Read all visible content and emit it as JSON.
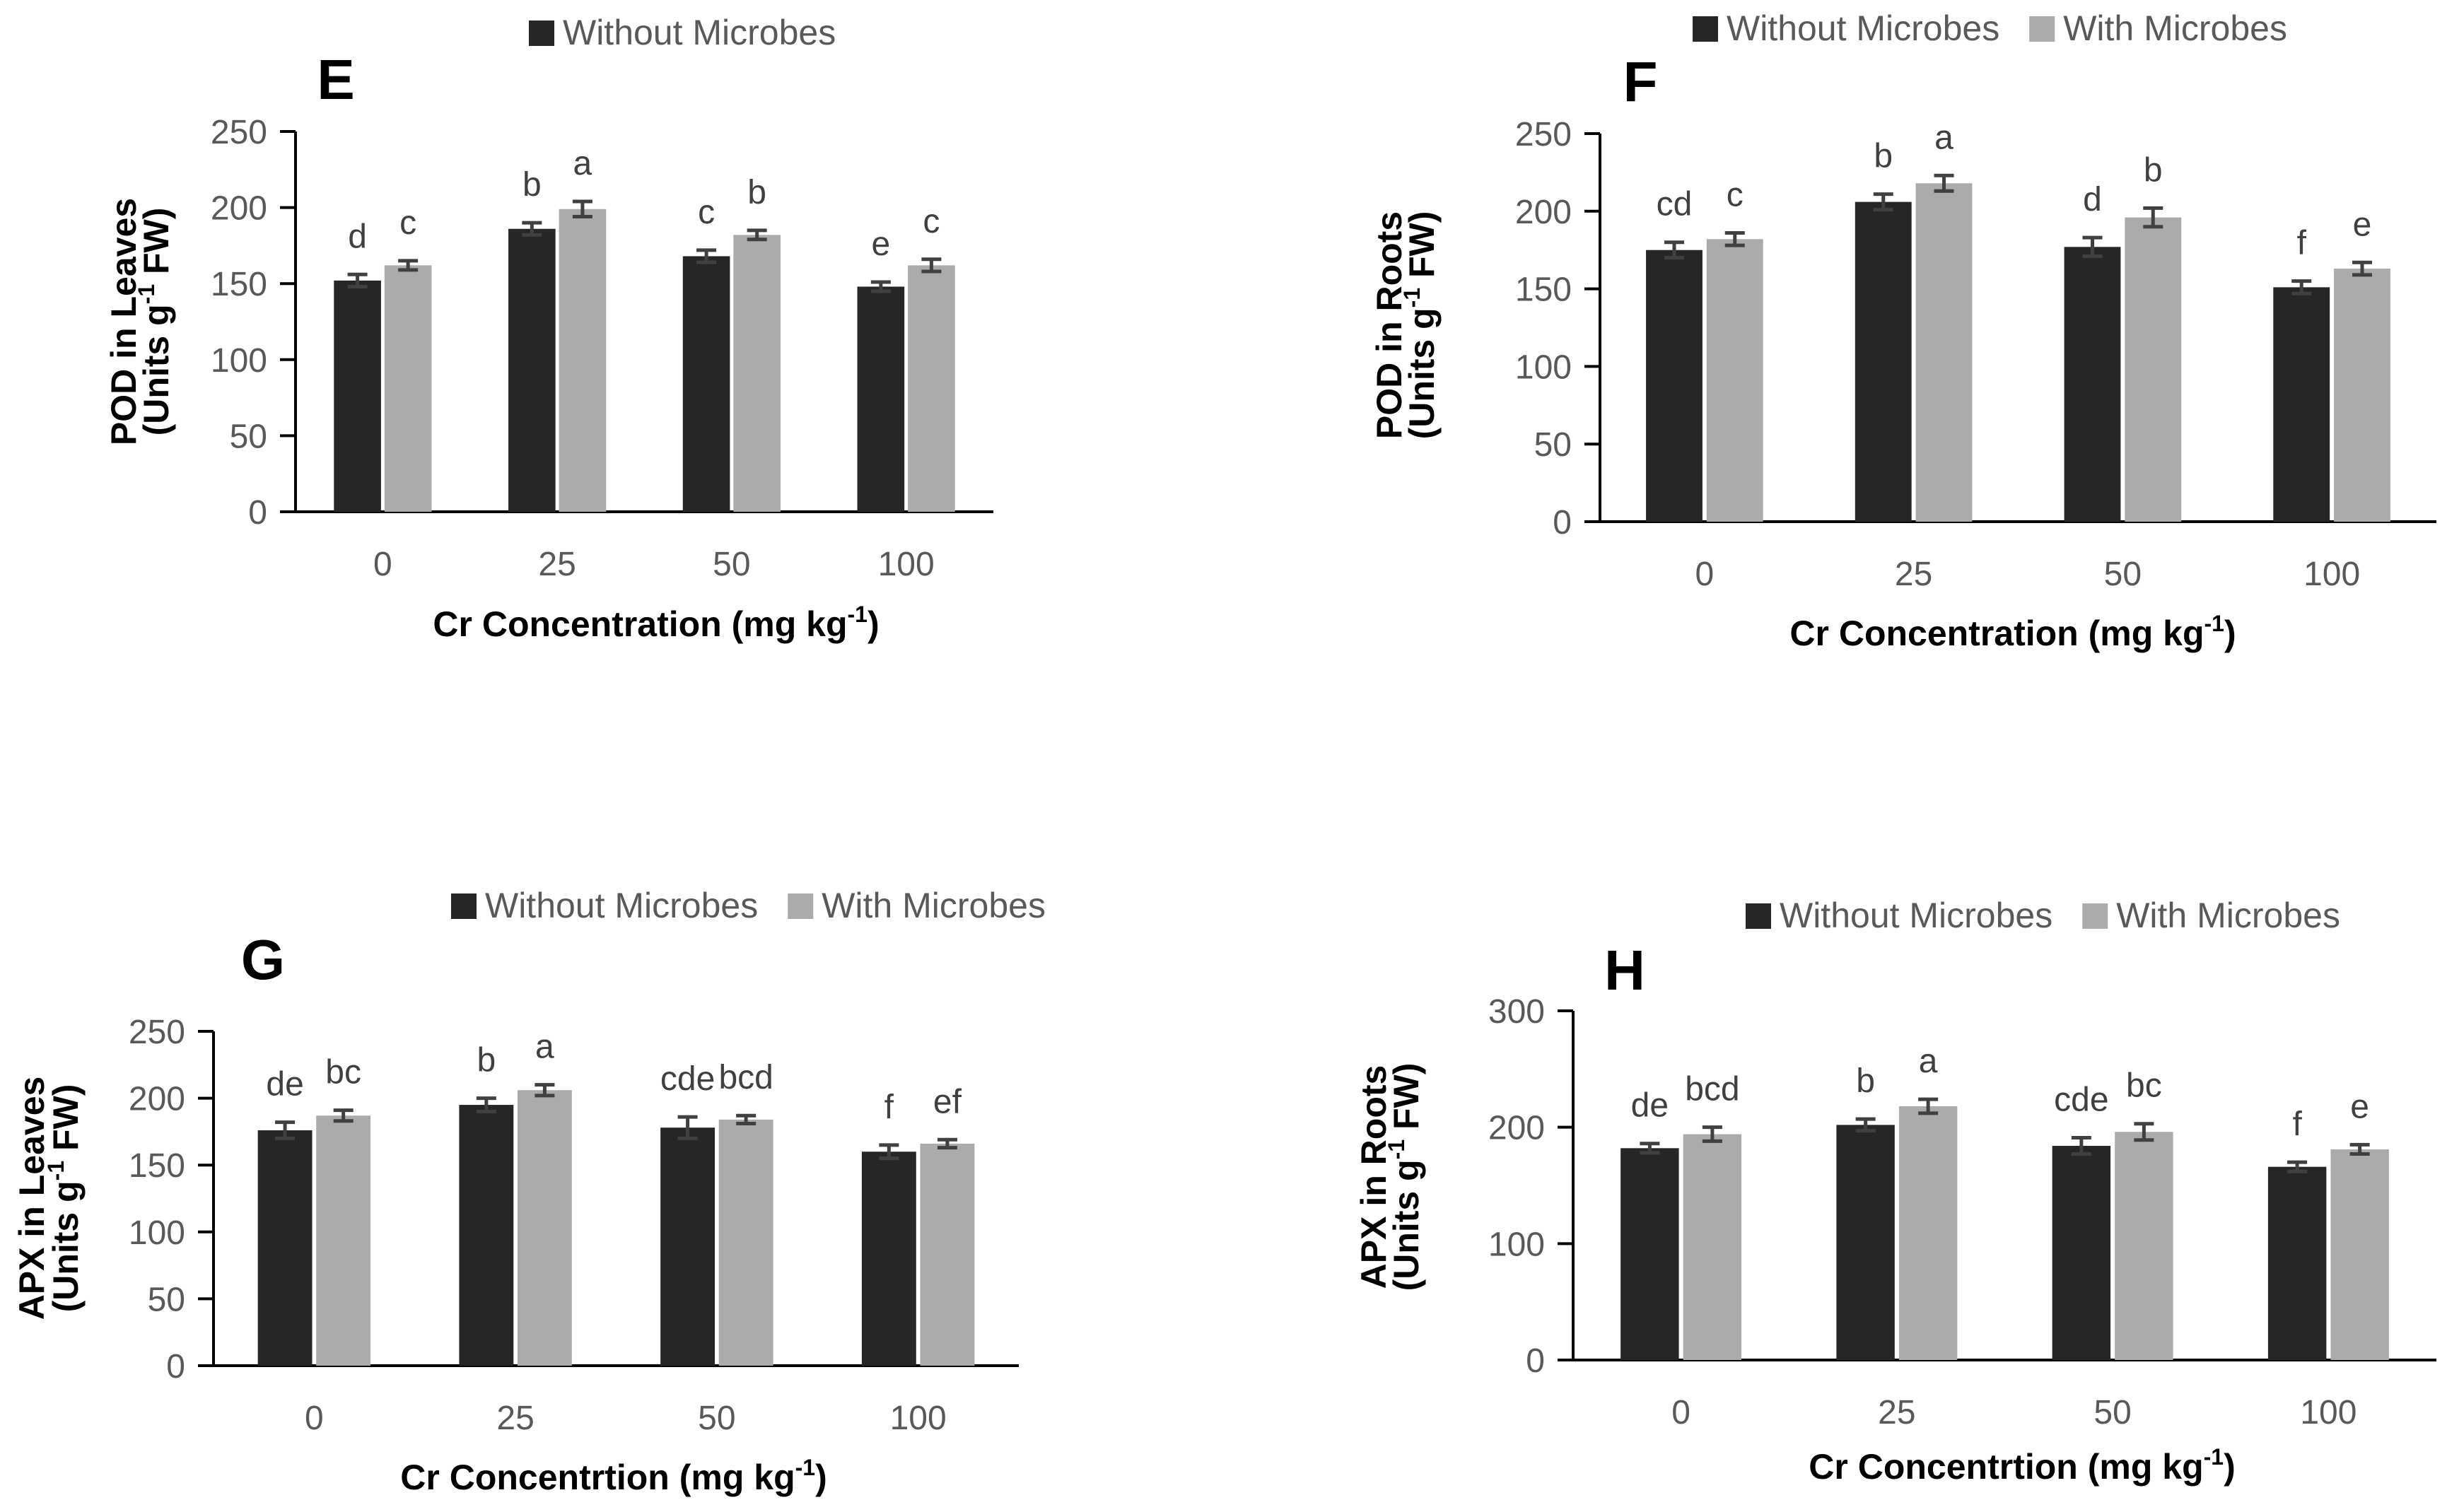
{
  "colors": {
    "without": "#262626",
    "with": "#ababab",
    "axis": "#000000",
    "errorbar": "#404040"
  },
  "chart_data": [
    {
      "type": "bar",
      "panel": "E",
      "legend": [
        "Without Microbes"
      ],
      "categories": [
        "0",
        "25",
        "50",
        "100"
      ],
      "xlabel": "Cr Concentration (mg kg",
      "xlabel_sup": "-1",
      "xlabel_end": ")",
      "ylabel_line1": "POD in Leaves",
      "ylabel_line2_pre": "(Units g",
      "ylabel_sup": "-1",
      "ylabel_line2_post": " FW)",
      "ylim": [
        0,
        250
      ],
      "yticks": [
        "0",
        "50",
        "100",
        "150",
        "200",
        "250"
      ],
      "series": [
        {
          "name": "Without Microbes",
          "values": [
            152,
            186,
            168,
            148
          ],
          "errors": [
            4,
            4,
            4,
            3
          ],
          "letters": [
            "d",
            "b",
            "c",
            "e"
          ]
        },
        {
          "name": "With Microbes",
          "values": [
            162,
            199,
            182,
            162
          ],
          "errors": [
            3,
            5,
            3,
            4
          ],
          "letters": [
            "c",
            "a",
            "b",
            "c"
          ]
        }
      ]
    },
    {
      "type": "bar",
      "panel": "F",
      "legend": [
        "Without Microbes",
        "With Microbes"
      ],
      "categories": [
        "0",
        "25",
        "50",
        "100"
      ],
      "xlabel": "Cr Concentration (mg kg",
      "xlabel_sup": "-1",
      "xlabel_end": ")",
      "ylabel_line1": "POD in Roots",
      "ylabel_line2_pre": "(Units g",
      "ylabel_sup": "-1",
      "ylabel_line2_post": " FW)",
      "ylim": [
        0,
        250
      ],
      "yticks": [
        "0",
        "50",
        "100",
        "150",
        "200",
        "250"
      ],
      "series": [
        {
          "name": "Without Microbes",
          "values": [
            175,
            206,
            177,
            151
          ],
          "errors": [
            5,
            5,
            6,
            4
          ],
          "letters": [
            "cd",
            "b",
            "d",
            "f"
          ]
        },
        {
          "name": "With Microbes",
          "values": [
            182,
            218,
            196,
            163
          ],
          "errors": [
            4,
            5,
            6,
            4
          ],
          "letters": [
            "c",
            "a",
            "b",
            "e"
          ]
        }
      ]
    },
    {
      "type": "bar",
      "panel": "G",
      "legend": [
        "Without Microbes",
        "With Microbes"
      ],
      "categories": [
        "0",
        "25",
        "50",
        "100"
      ],
      "xlabel": "Cr Concentrtion (mg kg",
      "xlabel_sup": "-1",
      "xlabel_end": ")",
      "ylabel_line1": "APX in Leaves",
      "ylabel_line2_pre": "(Units g",
      "ylabel_sup": "-1",
      "ylabel_line2_post": " FW)",
      "ylim": [
        0,
        250
      ],
      "yticks": [
        "0",
        "50",
        "100",
        "150",
        "200",
        "250"
      ],
      "series": [
        {
          "name": "Without Microbes",
          "values": [
            176,
            195,
            178,
            160
          ],
          "errors": [
            6,
            5,
            8,
            5
          ],
          "letters": [
            "de",
            "b",
            "cde",
            "f"
          ]
        },
        {
          "name": "With Microbes",
          "values": [
            187,
            206,
            184,
            166
          ],
          "errors": [
            4,
            4,
            3,
            3
          ],
          "letters": [
            "bc",
            "a",
            "bcd",
            "ef"
          ]
        }
      ]
    },
    {
      "type": "bar",
      "panel": "H",
      "legend": [
        "Without Microbes",
        "With Microbes"
      ],
      "categories": [
        "0",
        "25",
        "50",
        "100"
      ],
      "xlabel": "Cr Concentrtion (mg kg",
      "xlabel_sup": "-1",
      "xlabel_end": ")",
      "ylabel_line1": "APX in Roots",
      "ylabel_line2_pre": "(Units g",
      "ylabel_sup": "-1",
      "ylabel_line2_post": " FW)",
      "ylim": [
        0,
        300
      ],
      "yticks": [
        "0",
        "100",
        "200",
        "300"
      ],
      "series": [
        {
          "name": "Without Microbes",
          "values": [
            182,
            202,
            184,
            166
          ],
          "errors": [
            4,
            5,
            7,
            4
          ],
          "letters": [
            "de",
            "b",
            "cde",
            "f"
          ]
        },
        {
          "name": "With Microbes",
          "values": [
            194,
            218,
            196,
            181
          ],
          "errors": [
            6,
            6,
            7,
            4
          ],
          "letters": [
            "bcd",
            "a",
            "bc",
            "e"
          ]
        }
      ]
    }
  ]
}
